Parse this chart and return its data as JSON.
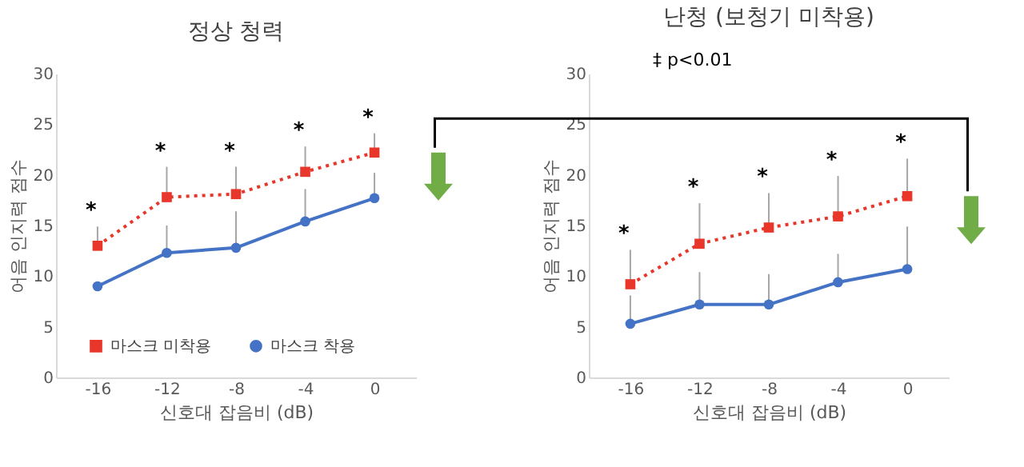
{
  "chart_data": [
    {
      "type": "line",
      "title": "정상 청력",
      "xlabel": "신호대 잡음비 (dB)",
      "ylabel": "어음 인지력 점수",
      "categories": [
        "-16",
        "-12",
        "-8",
        "-4",
        "0"
      ],
      "ylim": [
        0,
        30
      ],
      "yticks": [
        0,
        5,
        10,
        15,
        20,
        25,
        30
      ],
      "grid": false,
      "legend": "bottom",
      "series": [
        {
          "name": "마스크 미착용",
          "color": "#e8372a",
          "marker": "square",
          "line_style": "dotted",
          "values": [
            13.0,
            17.8,
            18.1,
            20.3,
            22.2
          ],
          "errors": [
            [
              13.0,
              14.9
            ],
            [
              17.8,
              20.8
            ],
            [
              18.1,
              20.8
            ],
            [
              20.3,
              22.8
            ],
            [
              22.2,
              24.1
            ]
          ]
        },
        {
          "name": "마스크 착용",
          "color": "#4472c4",
          "marker": "circle",
          "line_style": "solid",
          "values": [
            9.0,
            12.3,
            12.8,
            15.4,
            17.7
          ],
          "errors": [
            null,
            [
              12.3,
              15.0
            ],
            [
              12.8,
              16.4
            ],
            [
              15.4,
              18.6
            ],
            [
              17.7,
              20.2
            ]
          ]
        }
      ],
      "annotations": [
        {
          "text": "*",
          "x": "-16",
          "y": 14.9
        },
        {
          "text": "*",
          "x": "-12",
          "y": 20.8
        },
        {
          "text": "*",
          "x": "-8",
          "y": 20.8
        },
        {
          "text": "*",
          "x": "-4",
          "y": 22.8
        },
        {
          "text": "*",
          "x": "0",
          "y": 24.1
        }
      ]
    },
    {
      "type": "line",
      "title": "난청 (보청기 미착용)",
      "xlabel": "신호대 잡음비 (dB)",
      "ylabel": "어음 인지력 점수",
      "categories": [
        "-16",
        "-12",
        "-8",
        "-4",
        "0"
      ],
      "ylim": [
        0,
        30
      ],
      "yticks": [
        0,
        5,
        10,
        15,
        20,
        25,
        30
      ],
      "grid": false,
      "legend": "bottom",
      "series": [
        {
          "name": "마스크 미착용",
          "color": "#e8372a",
          "marker": "square",
          "line_style": "dotted",
          "values": [
            9.2,
            13.2,
            14.8,
            15.9,
            17.9
          ],
          "errors": [
            [
              9.2,
              12.6
            ],
            [
              13.2,
              17.2
            ],
            [
              14.8,
              18.2
            ],
            [
              15.9,
              19.9
            ],
            [
              17.9,
              21.6
            ]
          ]
        },
        {
          "name": "마스크 착용",
          "color": "#4472c4",
          "marker": "circle",
          "line_style": "solid",
          "values": [
            5.3,
            7.2,
            7.2,
            9.4,
            10.7
          ],
          "errors": [
            [
              5.3,
              8.1
            ],
            [
              7.2,
              10.4
            ],
            [
              7.2,
              10.2
            ],
            [
              9.4,
              12.2
            ],
            [
              10.7,
              14.9
            ]
          ]
        }
      ],
      "annotations": [
        {
          "text": "*",
          "x": "-16",
          "y": 12.6
        },
        {
          "text": "*",
          "x": "-12",
          "y": 17.2
        },
        {
          "text": "*",
          "x": "-8",
          "y": 18.2
        },
        {
          "text": "*",
          "x": "-4",
          "y": 19.9
        },
        {
          "text": "*",
          "x": "0",
          "y": 21.6
        },
        "‡ p<0.01"
      ]
    }
  ]
}
